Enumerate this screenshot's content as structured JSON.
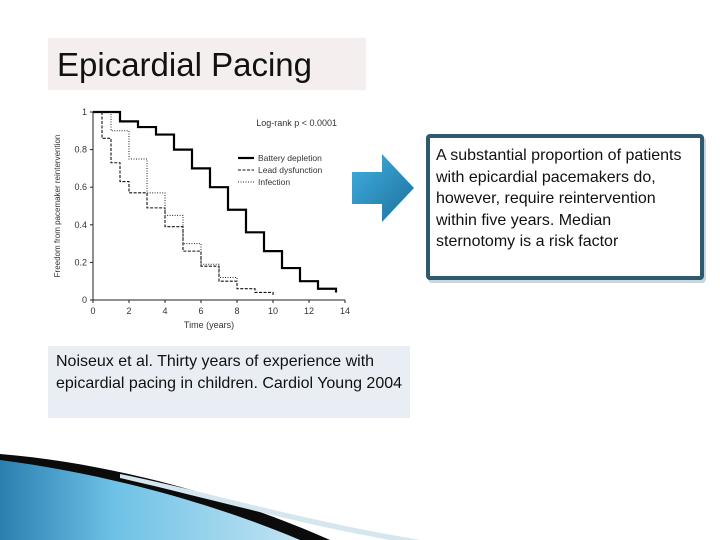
{
  "slide": {
    "title": "Epicardial Pacing",
    "callout_text": "A substantial proportion of patients with epicardial pacemakers do, however, require reintervention within five years. Median sternotomy is a risk factor",
    "citation_text": "Noiseux et al. Thirty years of experience with epicardial pacing in children. Cardiol Young 2004",
    "accent_colors": {
      "callout_border": "#2d5a6e",
      "arrow": "#2a8fc0",
      "citation_bg": "#e9eef5",
      "title_bg": "#f4eeee"
    }
  },
  "chart_data": {
    "type": "line",
    "xlabel": "Time (years)",
    "ylabel": "Freedom from pacemaker reintervention",
    "xlim": [
      0,
      14
    ],
    "ylim": [
      0,
      1
    ],
    "xticks": [
      "0",
      "2",
      "4",
      "6",
      "8",
      "10",
      "12",
      "14"
    ],
    "yticks": [
      "0",
      "0.2",
      "0.4",
      "0.6",
      "0.8",
      "1"
    ],
    "annotation": "Log-rank p < 0.0001",
    "legend_position": "top-right",
    "series": [
      {
        "name": "Battery depletion",
        "style": "solid-thick",
        "x": [
          0,
          1.5,
          2.5,
          3.5,
          4.5,
          5.5,
          6.5,
          7.5,
          8.5,
          9.5,
          10.5,
          11.5,
          12.5,
          13.5
        ],
        "y": [
          1.0,
          0.95,
          0.92,
          0.88,
          0.8,
          0.7,
          0.6,
          0.48,
          0.36,
          0.26,
          0.17,
          0.1,
          0.06,
          0.04
        ]
      },
      {
        "name": "Lead dysfunction",
        "style": "dashed",
        "x": [
          0,
          0.5,
          1.0,
          1.5,
          2.0,
          3.0,
          4.0,
          5.0,
          6.0,
          7.0,
          8.0,
          9.0,
          10.0
        ],
        "y": [
          1.0,
          0.86,
          0.73,
          0.63,
          0.57,
          0.49,
          0.39,
          0.26,
          0.18,
          0.1,
          0.06,
          0.04,
          0.02
        ]
      },
      {
        "name": "Infection",
        "style": "dotted",
        "x": [
          0,
          1.0,
          2.0,
          3.0,
          4.0,
          5.0,
          6.0,
          7.0,
          8.0
        ],
        "y": [
          1.0,
          0.9,
          0.75,
          0.57,
          0.45,
          0.3,
          0.19,
          0.12,
          0.08
        ]
      }
    ]
  }
}
